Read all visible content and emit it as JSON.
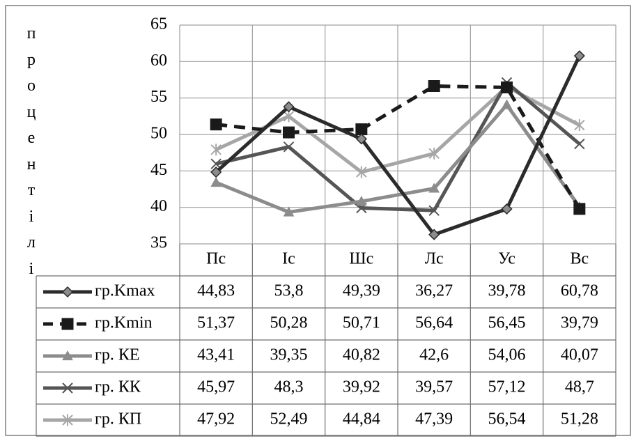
{
  "chart_data": {
    "type": "line",
    "title": "",
    "xlabel": "",
    "ylabel": "процентілі",
    "ylim": [
      35,
      65
    ],
    "yticks": [
      "35",
      "40",
      "45",
      "50",
      "55",
      "60",
      "65"
    ],
    "categories": [
      "Пс",
      "Іс",
      "Шс",
      "Лс",
      "Ус",
      "Вс"
    ],
    "grid": true,
    "legend": "data-table-left",
    "series": [
      {
        "name": "гр.Kmax",
        "values": [
          44.83,
          53.8,
          49.39,
          36.27,
          39.78,
          60.78
        ],
        "labels": [
          "44,83",
          "53,8",
          "49,39",
          "36,27",
          "39,78",
          "60,78"
        ],
        "color": "#2b2b2b",
        "marker": "diamond",
        "dashed": false
      },
      {
        "name": "гр.Kmin",
        "values": [
          51.37,
          50.28,
          50.71,
          56.64,
          56.45,
          39.79
        ],
        "labels": [
          "51,37",
          "50,28",
          "50,71",
          "56,64",
          "56,45",
          "39,79"
        ],
        "color": "#1a1a1a",
        "marker": "square",
        "dashed": true
      },
      {
        "name": "гр. КЕ",
        "values": [
          43.41,
          39.35,
          40.82,
          42.6,
          54.06,
          40.07
        ],
        "labels": [
          "43,41",
          "39,35",
          "40,82",
          "42,6",
          "54,06",
          "40,07"
        ],
        "color": "#8c8c8c",
        "marker": "triangle",
        "dashed": false
      },
      {
        "name": "гр. КК",
        "values": [
          45.97,
          48.3,
          39.92,
          39.57,
          57.12,
          48.7
        ],
        "labels": [
          "45,97",
          "48,3",
          "39,92",
          "39,57",
          "57,12",
          "48,7"
        ],
        "color": "#555555",
        "marker": "x",
        "dashed": false
      },
      {
        "name": "гр. КП",
        "values": [
          47.92,
          52.49,
          44.84,
          47.39,
          56.54,
          51.28
        ],
        "labels": [
          "47,92",
          "52,49",
          "44,84",
          "47,39",
          "56,54",
          "51,28"
        ],
        "color": "#a6a6a6",
        "marker": "star",
        "dashed": false
      }
    ]
  }
}
